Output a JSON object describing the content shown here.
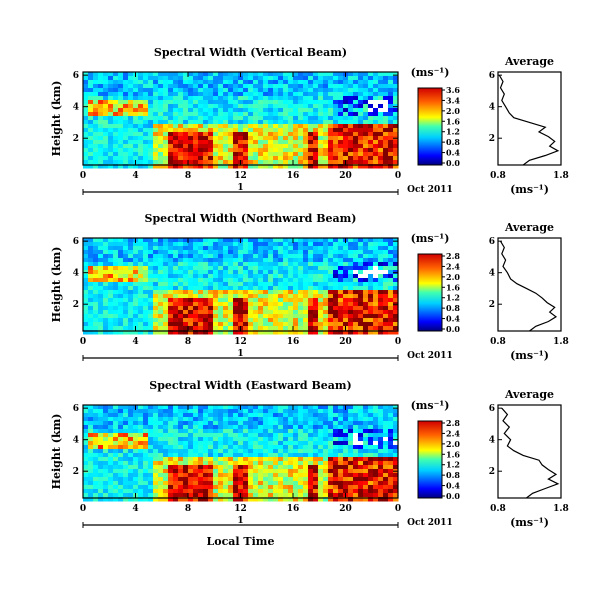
{
  "chart_data": [
    {
      "type": "heatmap",
      "title": "Spectral Width (Vertical Beam)",
      "ylabel": "Height (km)",
      "xticks": [
        "0",
        "4",
        "8",
        "12",
        "16",
        "20",
        "0"
      ],
      "xlim": [
        0,
        24
      ],
      "yticks": [
        "6",
        "4",
        "2"
      ],
      "ylim": [
        0.3,
        6.2
      ],
      "date_axis": {
        "day_label": "1",
        "month_label": "Oct 2011"
      },
      "colorbar": {
        "unit": "(ms⁻¹)",
        "ticks": [
          "3.6",
          "3.4",
          "2.0",
          "1.6",
          "1.2",
          "0.8",
          "0.4",
          "0.0"
        ]
      },
      "profile": {
        "title": "Average",
        "xlabel": "(ms⁻¹)",
        "xticks": [
          "0.8",
          "1.8"
        ],
        "xlim": [
          0.8,
          1.8
        ],
        "yticks": [
          "6",
          "4",
          "2"
        ],
        "ylim": [
          0.3,
          6.2
        ],
        "points": [
          [
            0.82,
            6.0
          ],
          [
            0.88,
            5.6
          ],
          [
            0.84,
            5.2
          ],
          [
            0.9,
            4.8
          ],
          [
            0.86,
            4.4
          ],
          [
            0.92,
            4.0
          ],
          [
            0.98,
            3.6
          ],
          [
            1.05,
            3.3
          ],
          [
            1.3,
            3.0
          ],
          [
            1.55,
            2.7
          ],
          [
            1.45,
            2.4
          ],
          [
            1.6,
            2.1
          ],
          [
            1.7,
            1.8
          ],
          [
            1.62,
            1.5
          ],
          [
            1.75,
            1.2
          ],
          [
            1.55,
            0.9
          ],
          [
            1.3,
            0.6
          ],
          [
            1.2,
            0.3
          ]
        ]
      }
    },
    {
      "type": "heatmap",
      "title": "Spectral Width (Northward Beam)",
      "ylabel": "Height (km)",
      "xticks": [
        "0",
        "4",
        "8",
        "12",
        "16",
        "20",
        "0"
      ],
      "xlim": [
        0,
        24
      ],
      "yticks": [
        "6",
        "4",
        "2"
      ],
      "ylim": [
        0.3,
        6.2
      ],
      "date_axis": {
        "day_label": "1",
        "month_label": "Oct 2011"
      },
      "colorbar": {
        "unit": "(ms⁻¹)",
        "ticks": [
          "2.8",
          "2.4",
          "2.0",
          "1.6",
          "1.2",
          "0.8",
          "0.4",
          "0.0"
        ]
      },
      "profile": {
        "title": "Average",
        "xlabel": "(ms⁻¹)",
        "xticks": [
          "0.8",
          "1.8"
        ],
        "xlim": [
          0.8,
          1.8
        ],
        "yticks": [
          "6",
          "4",
          "2"
        ],
        "ylim": [
          0.3,
          6.2
        ],
        "points": [
          [
            0.84,
            6.0
          ],
          [
            0.9,
            5.6
          ],
          [
            0.86,
            5.2
          ],
          [
            0.92,
            4.8
          ],
          [
            0.88,
            4.4
          ],
          [
            0.95,
            4.0
          ],
          [
            1.0,
            3.6
          ],
          [
            1.1,
            3.3
          ],
          [
            1.25,
            3.0
          ],
          [
            1.4,
            2.7
          ],
          [
            1.5,
            2.4
          ],
          [
            1.58,
            2.1
          ],
          [
            1.7,
            1.8
          ],
          [
            1.62,
            1.5
          ],
          [
            1.72,
            1.2
          ],
          [
            1.6,
            0.9
          ],
          [
            1.4,
            0.6
          ],
          [
            1.3,
            0.3
          ]
        ]
      }
    },
    {
      "type": "heatmap",
      "title": "Spectral Width (Eastward Beam)",
      "ylabel": "Height (km)",
      "xticks": [
        "0",
        "4",
        "8",
        "12",
        "16",
        "20",
        "0"
      ],
      "xlim": [
        0,
        24
      ],
      "xlabel": "Local Time",
      "yticks": [
        "6",
        "4",
        "2"
      ],
      "ylim": [
        0.3,
        6.2
      ],
      "date_axis": {
        "day_label": "1",
        "month_label": "Oct 2011"
      },
      "colorbar": {
        "unit": "(ms⁻¹)",
        "ticks": [
          "2.8",
          "2.4",
          "2.0",
          "1.6",
          "1.2",
          "0.8",
          "0.4",
          "0.0"
        ]
      },
      "profile": {
        "title": "Average",
        "xlabel": "(ms⁻¹)",
        "xticks": [
          "0.8",
          "1.8"
        ],
        "xlim": [
          0.8,
          1.8
        ],
        "yticks": [
          "6",
          "4",
          "2"
        ],
        "ylim": [
          0.3,
          6.2
        ],
        "points": [
          [
            0.86,
            6.0
          ],
          [
            0.95,
            5.6
          ],
          [
            0.88,
            5.2
          ],
          [
            0.98,
            4.8
          ],
          [
            0.9,
            4.4
          ],
          [
            1.0,
            4.0
          ],
          [
            0.95,
            3.6
          ],
          [
            1.05,
            3.3
          ],
          [
            1.2,
            3.0
          ],
          [
            1.45,
            2.7
          ],
          [
            1.5,
            2.4
          ],
          [
            1.6,
            2.1
          ],
          [
            1.72,
            1.8
          ],
          [
            1.6,
            1.5
          ],
          [
            1.75,
            1.2
          ],
          [
            1.55,
            0.9
          ],
          [
            1.35,
            0.6
          ],
          [
            1.25,
            0.3
          ]
        ]
      }
    }
  ]
}
